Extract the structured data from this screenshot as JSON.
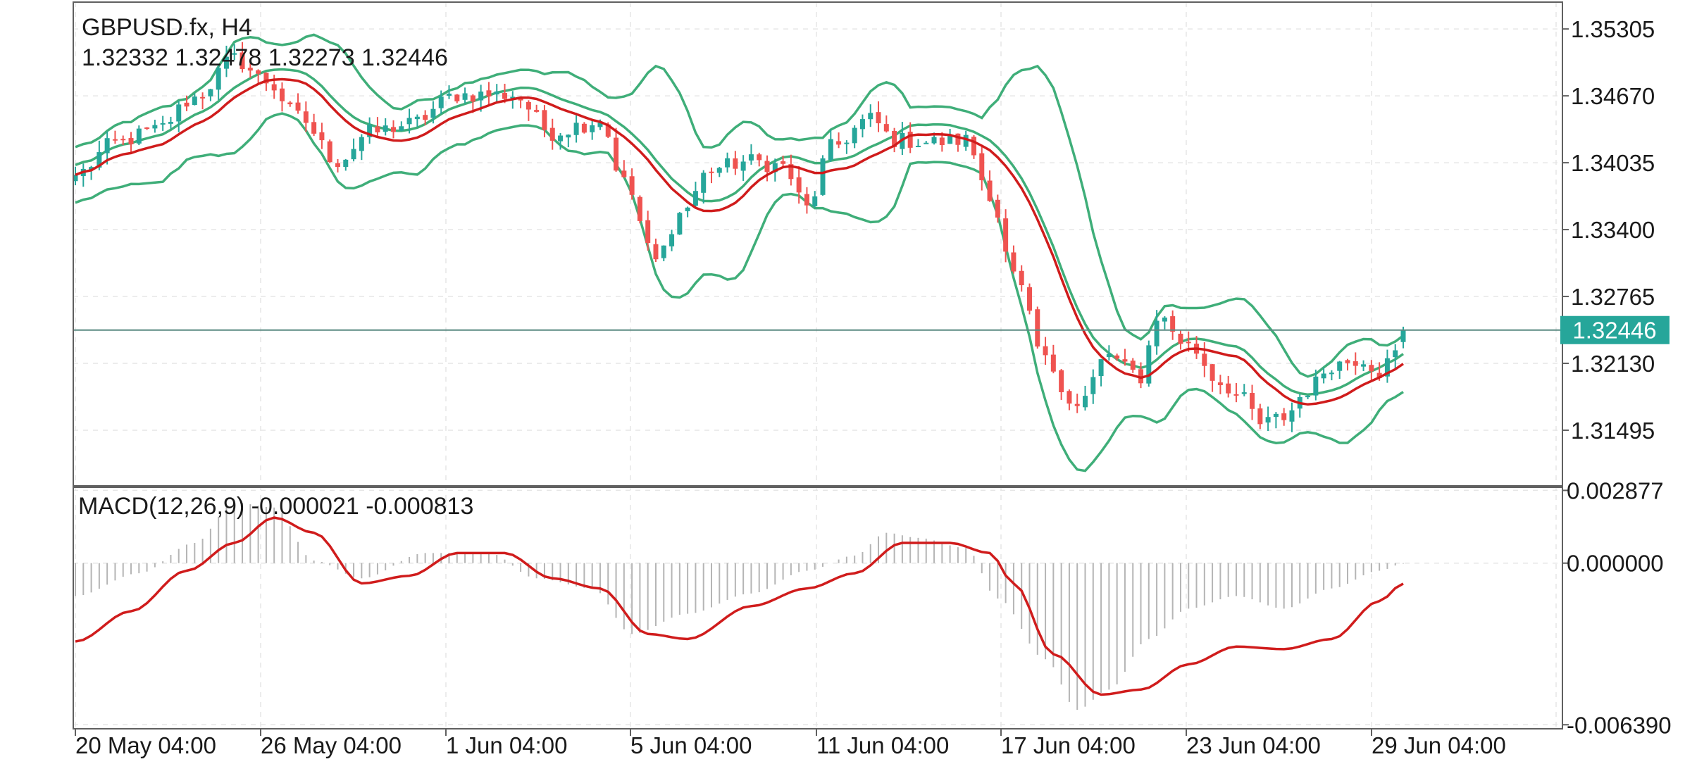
{
  "header": {
    "symbol_label": "GBPUSD.fx, H4",
    "ohlc_label": "1.32332 1.32478 1.32273 1.32446"
  },
  "current_price": {
    "label": "1.32446",
    "value": 1.32446,
    "color": "#26a69a"
  },
  "macd_header": {
    "label": "MACD(12,26,9) -0.000021 -0.000813"
  },
  "colors": {
    "bull": "#26a69a",
    "bear": "#ef5350",
    "ma": "#d01c1c",
    "bands": "#3fae79",
    "signal": "#d01c1c",
    "histogram": "#b5b5b5",
    "grid": "#e6e6e6",
    "frame": "#606060",
    "price_line": "#5a8a82"
  },
  "chart_data": [
    {
      "type": "candlestick",
      "title": "GBPUSD.fx, H4",
      "ylim": [
        1.3098,
        1.3556
      ],
      "price_ticks": [
        "1.35305",
        "1.34670",
        "1.34035",
        "1.33400",
        "1.32765",
        "1.32130",
        "1.31495"
      ],
      "x_ticks": [
        "20 May 04:00",
        "26 May 04:00",
        "1 Jun 04:00",
        "5 Jun 04:00",
        "11 Jun 04:00",
        "17 Jun 04:00",
        "23 Jun 04:00",
        "29 Jun 04:00"
      ],
      "grid": true,
      "indicators": [
        "Moving Average (red)",
        "Bollinger Bands (green)"
      ],
      "anchors": [
        {
          "i": 0,
          "price": 1.3392
        },
        {
          "i": 5,
          "price": 1.3422
        },
        {
          "i": 10,
          "price": 1.3434
        },
        {
          "i": 15,
          "price": 1.3465
        },
        {
          "i": 20,
          "price": 1.3502
        },
        {
          "i": 24,
          "price": 1.3481
        },
        {
          "i": 28,
          "price": 1.3447
        },
        {
          "i": 33,
          "price": 1.3405
        },
        {
          "i": 37,
          "price": 1.3432
        },
        {
          "i": 42,
          "price": 1.344
        },
        {
          "i": 48,
          "price": 1.3468
        },
        {
          "i": 55,
          "price": 1.3468
        },
        {
          "i": 60,
          "price": 1.3432
        },
        {
          "i": 64,
          "price": 1.344
        },
        {
          "i": 66,
          "price": 1.3445
        },
        {
          "i": 69,
          "price": 1.3385
        },
        {
          "i": 73,
          "price": 1.331
        },
        {
          "i": 76,
          "price": 1.3355
        },
        {
          "i": 80,
          "price": 1.3398
        },
        {
          "i": 85,
          "price": 1.3405
        },
        {
          "i": 89,
          "price": 1.34
        },
        {
          "i": 92,
          "price": 1.336
        },
        {
          "i": 95,
          "price": 1.3418
        },
        {
          "i": 100,
          "price": 1.3445
        },
        {
          "i": 103,
          "price": 1.3425
        },
        {
          "i": 108,
          "price": 1.3423
        },
        {
          "i": 112,
          "price": 1.3425
        },
        {
          "i": 115,
          "price": 1.3375
        },
        {
          "i": 118,
          "price": 1.3295
        },
        {
          "i": 122,
          "price": 1.3215
        },
        {
          "i": 126,
          "price": 1.3172
        },
        {
          "i": 130,
          "price": 1.3222
        },
        {
          "i": 132,
          "price": 1.3208
        },
        {
          "i": 134,
          "price": 1.32
        },
        {
          "i": 136,
          "price": 1.3258
        },
        {
          "i": 140,
          "price": 1.323
        },
        {
          "i": 144,
          "price": 1.3195
        },
        {
          "i": 147,
          "price": 1.3178
        },
        {
          "i": 149,
          "price": 1.3155
        },
        {
          "i": 152,
          "price": 1.3162
        },
        {
          "i": 155,
          "price": 1.3188
        },
        {
          "i": 158,
          "price": 1.3212
        },
        {
          "i": 162,
          "price": 1.3218
        },
        {
          "i": 164,
          "price": 1.3205
        },
        {
          "i": 166,
          "price": 1.3222
        },
        {
          "i": 167,
          "price": 1.3245
        }
      ],
      "candle_count": 168,
      "last_ohlc": {
        "open": 1.32332,
        "high": 1.32478,
        "low": 1.32273,
        "close": 1.32446
      }
    },
    {
      "type": "macd",
      "title": "MACD(12,26,9)",
      "ylim": [
        -0.00655,
        0.003
      ],
      "y_ticks": [
        "0.002877",
        "0.000000",
        "-0.006390"
      ],
      "macd_value": -2.1e-05,
      "signal_value": -0.000813,
      "histogram_anchors": [
        {
          "i": 0,
          "v": -0.0013
        },
        {
          "i": 8,
          "v": -0.0004
        },
        {
          "i": 15,
          "v": 0.0008
        },
        {
          "i": 20,
          "v": 0.0024
        },
        {
          "i": 25,
          "v": 0.0022
        },
        {
          "i": 30,
          "v": 0.0001
        },
        {
          "i": 36,
          "v": -0.0006
        },
        {
          "i": 44,
          "v": 0.0004
        },
        {
          "i": 52,
          "v": 0.0004
        },
        {
          "i": 58,
          "v": -0.0006
        },
        {
          "i": 65,
          "v": -0.001
        },
        {
          "i": 70,
          "v": -0.0028
        },
        {
          "i": 77,
          "v": -0.002
        },
        {
          "i": 85,
          "v": -0.0012
        },
        {
          "i": 92,
          "v": -0.0003
        },
        {
          "i": 98,
          "v": 0.0003
        },
        {
          "i": 102,
          "v": 0.0012
        },
        {
          "i": 106,
          "v": 0.001
        },
        {
          "i": 112,
          "v": 0.0006
        },
        {
          "i": 116,
          "v": -0.0014
        },
        {
          "i": 122,
          "v": -0.0038
        },
        {
          "i": 126,
          "v": -0.0058
        },
        {
          "i": 130,
          "v": -0.005
        },
        {
          "i": 135,
          "v": -0.003
        },
        {
          "i": 140,
          "v": -0.0018
        },
        {
          "i": 146,
          "v": -0.0013
        },
        {
          "i": 152,
          "v": -0.0018
        },
        {
          "i": 158,
          "v": -0.001
        },
        {
          "i": 164,
          "v": -0.0003
        },
        {
          "i": 167,
          "v": -2.1e-05
        }
      ],
      "signal_anchors": [
        {
          "i": 0,
          "v": -0.0031
        },
        {
          "i": 7,
          "v": -0.0019
        },
        {
          "i": 14,
          "v": -0.0003
        },
        {
          "i": 20,
          "v": 0.0008
        },
        {
          "i": 25,
          "v": 0.0018
        },
        {
          "i": 30,
          "v": 0.0012
        },
        {
          "i": 36,
          "v": -0.0008
        },
        {
          "i": 42,
          "v": -0.0005
        },
        {
          "i": 48,
          "v": 0.0004
        },
        {
          "i": 54,
          "v": 0.0004
        },
        {
          "i": 60,
          "v": -0.0006
        },
        {
          "i": 66,
          "v": -0.001
        },
        {
          "i": 72,
          "v": -0.0028
        },
        {
          "i": 77,
          "v": -0.003
        },
        {
          "i": 85,
          "v": -0.0017
        },
        {
          "i": 92,
          "v": -0.001
        },
        {
          "i": 98,
          "v": -0.0004
        },
        {
          "i": 104,
          "v": 0.0008
        },
        {
          "i": 110,
          "v": 0.0008
        },
        {
          "i": 115,
          "v": 0.0004
        },
        {
          "i": 118,
          "v": -0.0008
        },
        {
          "i": 123,
          "v": -0.0036
        },
        {
          "i": 129,
          "v": -0.0052
        },
        {
          "i": 134,
          "v": -0.005
        },
        {
          "i": 140,
          "v": -0.004
        },
        {
          "i": 146,
          "v": -0.0033
        },
        {
          "i": 152,
          "v": -0.0034
        },
        {
          "i": 158,
          "v": -0.003
        },
        {
          "i": 164,
          "v": -0.0015
        },
        {
          "i": 167,
          "v": -0.000813
        }
      ]
    }
  ]
}
